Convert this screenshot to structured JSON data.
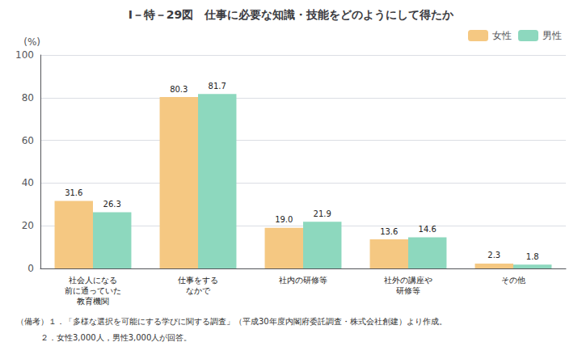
{
  "chart_data": {
    "type": "bar",
    "title": "Ⅰ－特－29図　仕事に必要な知識・技能をどのようにして得たか",
    "categories": [
      "社会人になる\n前に通っていた\n教育機関",
      "仕事をする\nなかで",
      "社内の研修等",
      "社外の講座や\n研修等",
      "その他"
    ],
    "series": [
      {
        "name": "女性",
        "color": "#f5c882",
        "values": [
          31.6,
          80.3,
          19.0,
          13.6,
          2.3
        ],
        "value_labels": [
          "31.6",
          "80.3",
          "19.0",
          "13.6",
          "2.3"
        ]
      },
      {
        "name": "男性",
        "color": "#8dd8be",
        "values": [
          26.3,
          81.7,
          21.9,
          14.6,
          1.8
        ]
      }
    ],
    "ylabel": "(%)",
    "ylim": [
      0,
      100
    ],
    "yticks": [
      0,
      20,
      40,
      60,
      80,
      100
    ],
    "grid": true,
    "legend": "upper right",
    "data_labels": true,
    "annotations": [
      "（備考）１．「多様な選択を可能にする学びに関する調査」（平成30年度内閣府委託調査・株式会社創建）より作成。",
      "　　　２．女性3,000人，男性3,000人が回答。"
    ]
  }
}
